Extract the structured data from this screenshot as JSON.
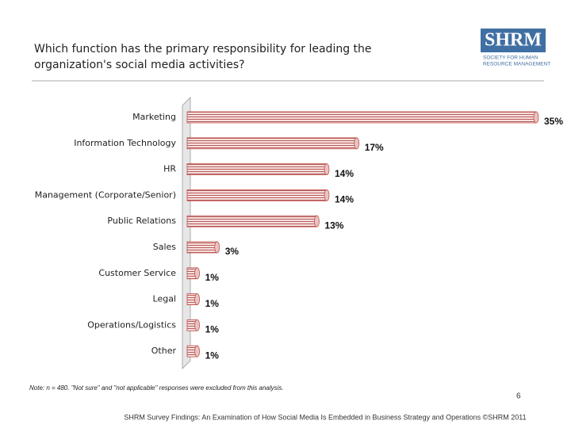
{
  "chart_data": {
    "type": "bar",
    "orientation": "horizontal",
    "title": "Which function has the primary responsibility for leading the organization's social media activities?",
    "categories": [
      "Marketing",
      "Information Technology",
      "HR",
      "Management (Corporate/Senior)",
      "Public Relations",
      "Sales",
      "Customer Service",
      "Legal",
      "Operations/Logistics",
      "Other"
    ],
    "values": [
      35,
      17,
      14,
      14,
      13,
      3,
      1,
      1,
      1,
      1
    ],
    "value_labels": [
      "35%",
      "17%",
      "14%",
      "14%",
      "13%",
      "3%",
      "1%",
      "1%",
      "1%",
      "1%"
    ],
    "color": "#c0504d"
  },
  "logo": {
    "text": "SHRM",
    "lines": [
      "SOCIETY FOR HUMAN",
      "RESOURCE MANAGEMENT"
    ]
  },
  "note": "Note: n = 480. \"Not sure\" and \"not applicable\" responses were excluded from this analysis.",
  "page_number": "6",
  "footer": "SHRM Survey Findings: An Examination of How Social Media Is Embedded in Business Strategy and Operations ©SHRM 2011"
}
